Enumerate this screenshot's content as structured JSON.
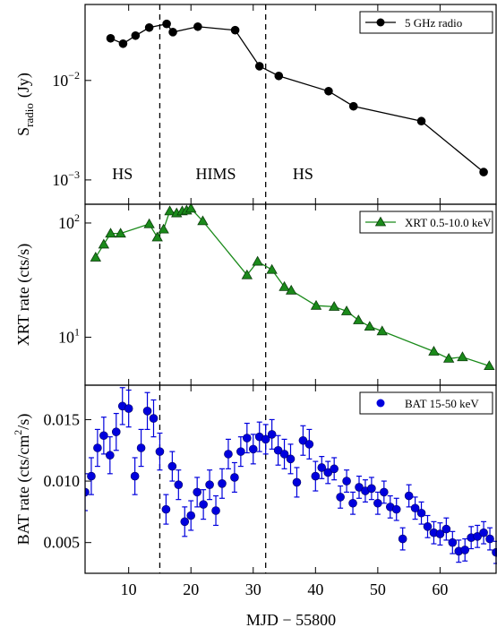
{
  "chart_data": [
    {
      "type": "line",
      "log_y": true,
      "ylabel": {
        "text": "S",
        "sub": "radio",
        "rest": "(Jy)"
      },
      "xlim": [
        3,
        69
      ],
      "xticks": [
        10,
        20,
        30,
        40,
        50,
        60
      ],
      "ylim": [
        0.00057,
        0.058
      ],
      "yticks": [
        {
          "value": 0.01,
          "label": "10",
          "sup": "−2"
        },
        {
          "value": 0.001,
          "label": "10",
          "sup": "−3"
        }
      ],
      "vlines": [
        15,
        32
      ],
      "annotations": [
        {
          "text": "HS",
          "x": 9
        },
        {
          "text": "HIMS",
          "x": 24
        },
        {
          "text": "HS",
          "x": 38
        }
      ],
      "legend": "upper right",
      "series": [
        {
          "name": "5 GHz radio",
          "color": "#000000",
          "marker": "o",
          "x": [
            7.1,
            9.1,
            11.1,
            13.3,
            16.1,
            17.1,
            21.1,
            27.1,
            31.0,
            34.1,
            42.1,
            46.1,
            57.0,
            67.0
          ],
          "values": [
            0.0265,
            0.0234,
            0.0282,
            0.034,
            0.037,
            0.0306,
            0.0347,
            0.032,
            0.0139,
            0.0111,
            0.0078,
            0.0055,
            0.0039,
            0.0012
          ]
        }
      ]
    },
    {
      "type": "line",
      "log_y": true,
      "ylabel": {
        "text": "XRT rate (cts/s)"
      },
      "xlim": [
        3,
        69
      ],
      "xticks": [
        10,
        20,
        30,
        40,
        50,
        60
      ],
      "ylim": [
        3.8,
        146
      ],
      "yticks": [
        {
          "value": 100,
          "label": "10",
          "sup": "2"
        },
        {
          "value": 10,
          "label": "10",
          "sup": "1"
        }
      ],
      "vlines": [
        15,
        32
      ],
      "legend": "upper right",
      "series": [
        {
          "name": "XRT 0.5-10.0 keV",
          "color": "#1a8a1a",
          "marker": "^",
          "x": [
            4.7,
            6.0,
            7.1,
            8.7,
            13.3,
            14.6,
            15.6,
            16.6,
            17.7,
            18.6,
            19.3,
            20.0,
            21.9,
            29.0,
            30.7,
            33.0,
            35.0,
            36.1,
            40.1,
            43.0,
            45.0,
            46.9,
            48.7,
            50.7,
            59.0,
            61.4,
            63.6,
            67.9
          ],
          "values": [
            50,
            65,
            81,
            81,
            98,
            75,
            88,
            127,
            122,
            127,
            129,
            134,
            104,
            35,
            46,
            39,
            27.6,
            25.7,
            18.9,
            18.5,
            16.9,
            14.1,
            12.4,
            11.3,
            7.5,
            6.5,
            6.7,
            5.6
          ]
        }
      ]
    },
    {
      "type": "errorbar",
      "log_y": false,
      "ylabel": {
        "text": "BAT rate (cts/cm",
        "sup": "2",
        "rest": "/s)"
      },
      "xlabel": "MJD − 55800",
      "xlim": [
        3,
        69
      ],
      "xticks": [
        10,
        20,
        30,
        40,
        50,
        60
      ],
      "ylim": [
        0.0025,
        0.0178
      ],
      "yticks": [
        0.005,
        {
          "value": 0.01,
          "label": "0.010"
        },
        0.015
      ],
      "vlines": [
        15,
        32
      ],
      "legend": "upper right",
      "series": [
        {
          "name": "BAT 15-50 keV",
          "color": "#0000dd",
          "marker": "o",
          "x": [
            3,
            4,
            5,
            6,
            7,
            8,
            9,
            10,
            11,
            12,
            13,
            14,
            15,
            16,
            17,
            18,
            19,
            20,
            21,
            22,
            23,
            24,
            25,
            26,
            27,
            28,
            29,
            30,
            31,
            32,
            33,
            34,
            35,
            36,
            37,
            38,
            39,
            40,
            41,
            42,
            43,
            44,
            45,
            46,
            47,
            48,
            49,
            50,
            51,
            52,
            53,
            54,
            55,
            56,
            57,
            58,
            59,
            60,
            61,
            62,
            63,
            64,
            65,
            66,
            67,
            68,
            69
          ],
          "values": [
            0.0091,
            0.0104,
            0.0127,
            0.0137,
            0.0121,
            0.014,
            0.0161,
            0.0159,
            0.0104,
            0.0127,
            0.0157,
            0.0151,
            0.0124,
            0.0077,
            0.0112,
            0.0097,
            0.0067,
            0.0072,
            0.0091,
            0.0081,
            0.0097,
            0.0076,
            0.0098,
            0.0122,
            0.0103,
            0.0124,
            0.0135,
            0.0126,
            0.0136,
            0.0134,
            0.0138,
            0.0125,
            0.0122,
            0.0118,
            0.0099,
            0.0133,
            0.013,
            0.0104,
            0.0111,
            0.0107,
            0.011,
            0.0087,
            0.01,
            0.0082,
            0.0095,
            0.0092,
            0.0094,
            0.0082,
            0.0091,
            0.0079,
            0.0077,
            0.0053,
            0.0088,
            0.0078,
            0.0074,
            0.0063,
            0.0058,
            0.0057,
            0.0061,
            0.005,
            0.0043,
            0.0044,
            0.0054,
            0.0055,
            0.0058,
            0.0053,
            0.0042
          ],
          "errors": [
            0.0015,
            0.0015,
            0.0015,
            0.0015,
            0.0015,
            0.0015,
            0.0015,
            0.0015,
            0.0015,
            0.0015,
            0.0015,
            0.0015,
            0.0015,
            0.0012,
            0.0012,
            0.0012,
            0.0012,
            0.0012,
            0.0012,
            0.0012,
            0.0012,
            0.0012,
            0.0012,
            0.0012,
            0.0012,
            0.0012,
            0.0012,
            0.0012,
            0.0012,
            0.0012,
            0.0012,
            0.0012,
            0.0012,
            0.0012,
            0.0012,
            0.0012,
            0.0012,
            0.0012,
            0.0009,
            0.0009,
            0.0009,
            0.0009,
            0.0009,
            0.0009,
            0.0009,
            0.0009,
            0.0009,
            0.0009,
            0.0009,
            0.0009,
            0.0009,
            0.0009,
            0.0009,
            0.0009,
            0.0009,
            0.0009,
            0.0009,
            0.0009,
            0.0009,
            0.0009,
            0.0009,
            0.0009,
            0.0009,
            0.0009,
            0.0009,
            0.0009,
            0.0009
          ]
        }
      ]
    }
  ]
}
